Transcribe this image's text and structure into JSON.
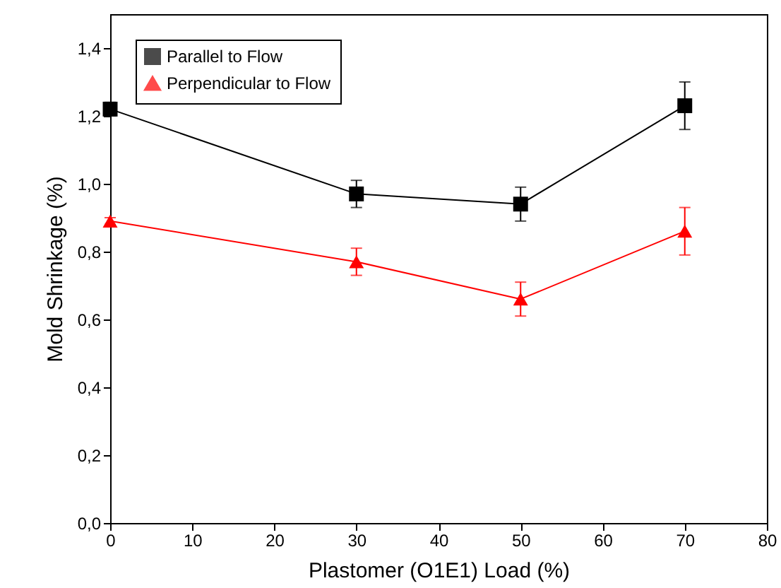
{
  "chart_data": {
    "type": "line",
    "xlabel": "Plastomer (O1E1) Load (%)",
    "ylabel": "Mold Shrinkage (%)",
    "x": [
      0,
      30,
      50,
      70
    ],
    "series": [
      {
        "name": "Parallel to Flow",
        "color": "#000000",
        "marker": "square",
        "values": [
          1.22,
          0.97,
          0.94,
          1.23
        ],
        "errors": [
          0.02,
          0.04,
          0.05,
          0.07
        ]
      },
      {
        "name": "Perpendicular to Flow",
        "color": "#ff0000",
        "marker": "triangle",
        "values": [
          0.89,
          0.77,
          0.66,
          0.86
        ],
        "errors": [
          0.01,
          0.04,
          0.05,
          0.07
        ]
      }
    ],
    "xlim": [
      0,
      80
    ],
    "xticks": [
      0,
      10,
      20,
      30,
      40,
      50,
      60,
      70,
      80
    ],
    "ylim": [
      0,
      1.5
    ],
    "yticks": [
      {
        "value": 0,
        "label": "0,0"
      },
      {
        "value": 0.2,
        "label": "0,2"
      },
      {
        "value": 0.4,
        "label": "0,4"
      },
      {
        "value": 0.6,
        "label": "0,6"
      },
      {
        "value": 0.8,
        "label": "0,8"
      },
      {
        "value": 1,
        "label": "1,0"
      },
      {
        "value": 1.2,
        "label": "1,2"
      },
      {
        "value": 1.4,
        "label": "1,4"
      }
    ],
    "legend": "top left",
    "grid": false
  }
}
